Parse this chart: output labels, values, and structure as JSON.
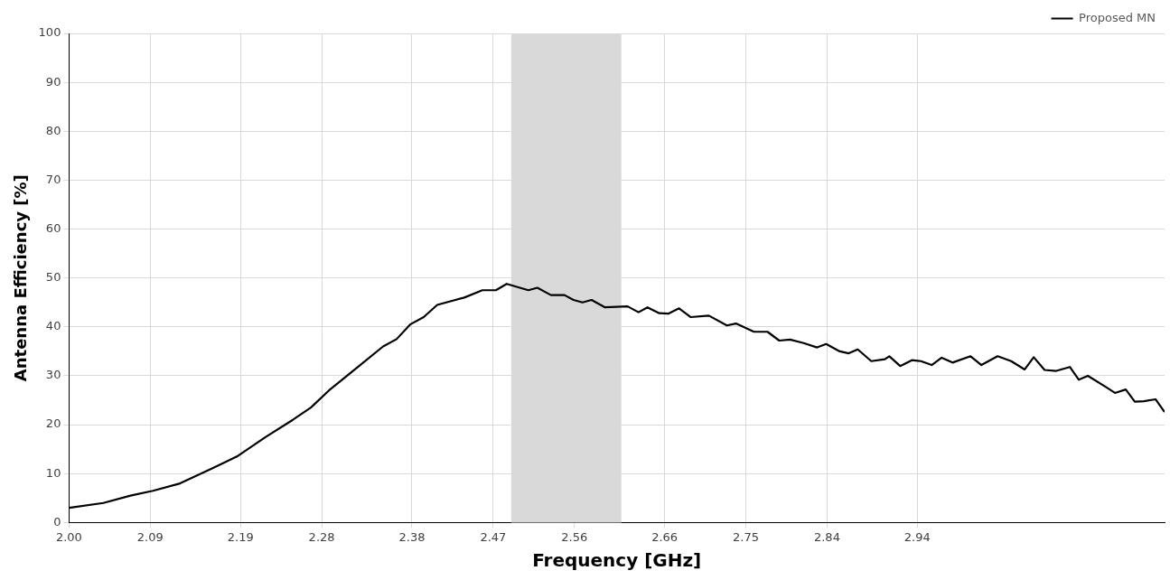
{
  "chart_data": {
    "type": "line",
    "xlabel": "Frequency [GHz]",
    "ylabel": "Antenna Efficiency [%]",
    "x": [
      2.0,
      2.038,
      2.068,
      2.093,
      2.123,
      2.158,
      2.186,
      2.218,
      2.248,
      2.268,
      2.288,
      2.318,
      2.348,
      2.363,
      2.378,
      2.393,
      2.408,
      2.438,
      2.458,
      2.473,
      2.485,
      2.509,
      2.519,
      2.534,
      2.549,
      2.559,
      2.569,
      2.579,
      2.594,
      2.619,
      2.631,
      2.641,
      2.654,
      2.664,
      2.676,
      2.689,
      2.709,
      2.729,
      2.739,
      2.759,
      2.774,
      2.787,
      2.799,
      2.814,
      2.829,
      2.839,
      2.854,
      2.864,
      2.874,
      2.889,
      2.904,
      2.909,
      2.921,
      2.934,
      2.944,
      2.956,
      2.967,
      2.979,
      2.999,
      3.011,
      3.029,
      3.044,
      3.059,
      3.069,
      3.081,
      3.094,
      3.109,
      3.119,
      3.129,
      3.149,
      3.159,
      3.171,
      3.181,
      3.191,
      3.204,
      3.214
    ],
    "series": [
      {
        "name": "Proposed MN",
        "color": "#000000",
        "values": [
          3.0,
          4,
          5.5,
          6.5,
          8,
          11,
          13.5,
          17.5,
          21,
          23.5,
          27,
          31.5,
          36,
          37.5,
          40.5,
          42,
          44.5,
          46,
          47.5,
          47.5,
          48.8,
          47.5,
          48,
          46.5,
          46.5,
          45.5,
          45,
          45.5,
          44,
          44.2,
          43,
          44,
          42.8,
          42.7,
          43.8,
          42,
          42.3,
          40.3,
          40.7,
          39,
          39,
          37.2,
          37.4,
          36.7,
          35.8,
          36.5,
          35,
          34.6,
          35.4,
          33,
          33.4,
          34,
          32,
          33.2,
          33,
          32.2,
          33.7,
          32.7,
          34,
          32.2,
          34,
          33,
          31.3,
          33.8,
          31.2,
          31,
          31.8,
          29.2,
          30,
          27.7,
          26.5,
          27.2,
          24.7,
          24.8,
          25.2,
          22.6
        ]
      }
    ],
    "xlim": [
      2.0,
      3.214
    ],
    "xticks": [
      {
        "value": 2.0,
        "label": "2.00"
      },
      2.09,
      2.19,
      2.28,
      2.38,
      2.47,
      2.56,
      2.66,
      2.75,
      2.84,
      2.94
    ],
    "ylim": [
      0,
      100
    ],
    "yticks": [
      0,
      10,
      20,
      30,
      40,
      50,
      60,
      70,
      80,
      90,
      100
    ],
    "bands": [
      {
        "axis": "x",
        "from": 2.49,
        "to": 2.612,
        "color": "#d9d9d9"
      }
    ],
    "grid": true,
    "legend": "top right",
    "marker": "none",
    "line_style": "solid"
  }
}
